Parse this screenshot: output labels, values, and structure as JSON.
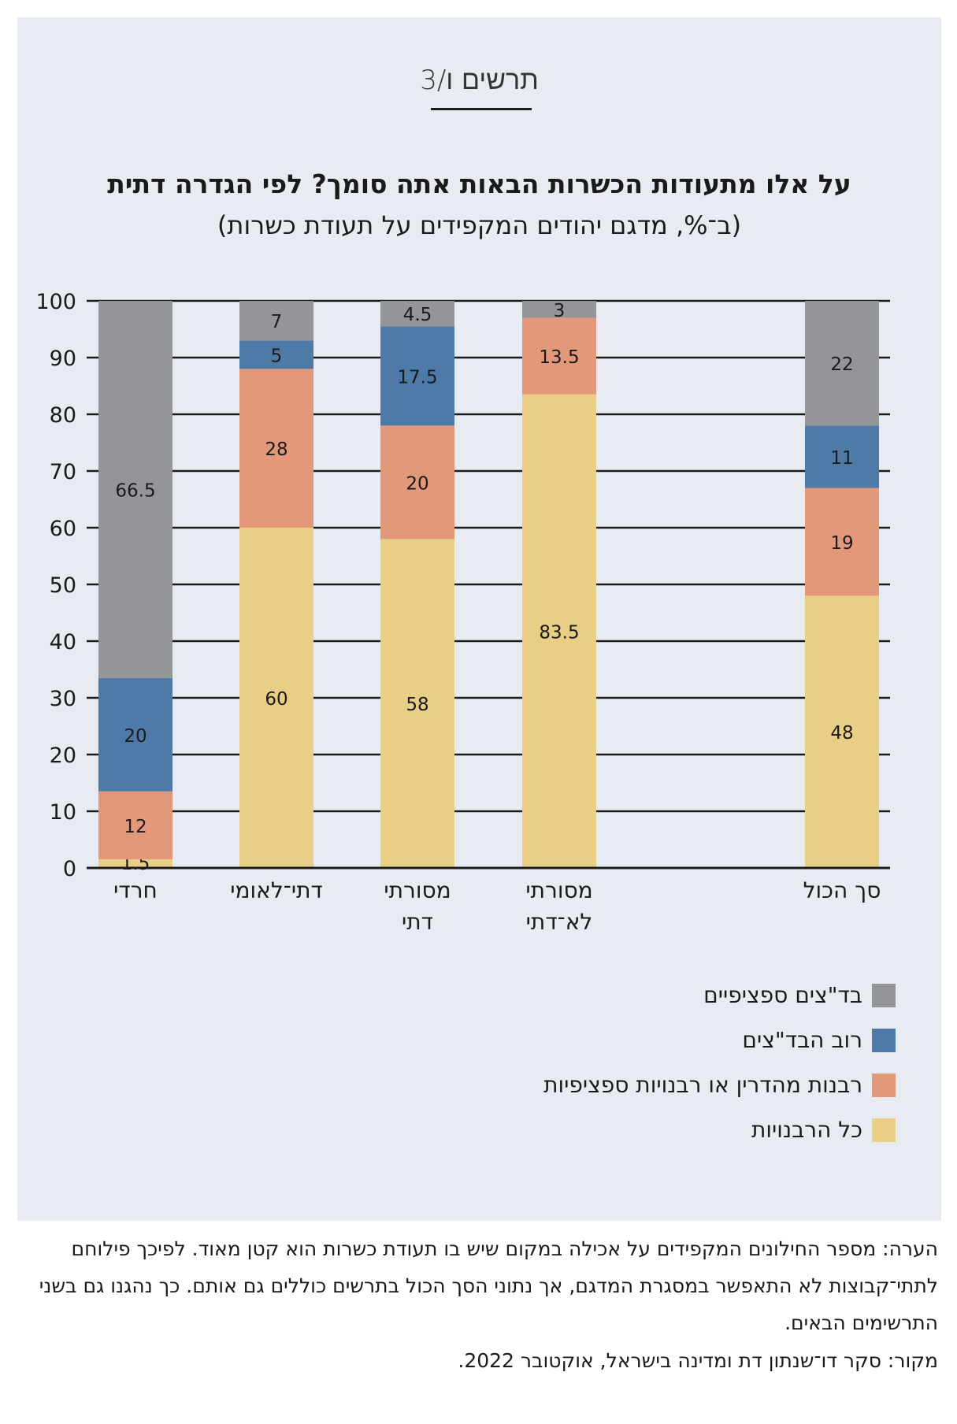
{
  "figure_label": "תרשים ו/3",
  "title": "על אלו מתעודות הכשרות הבאות אתה סומך? לפי הגדרה דתית",
  "subtitle": "(ב־%, מדגם יהודים המקפידים על תעודת כשרות)",
  "note": "הערה: מספר החילונים המקפידים על אכילה במקום שיש בו תעודת כשרות הוא קטן מאוד. לפיכך פילוחם לתתי־קבוצות לא התאפשר במסגרת המדגם, אך נתוני הסך הכול בתרשים כוללים גם אותם. כך נהגנו גם בשני התרשימים הבאים.",
  "source": "מקור: סקר דו־שנתון דת ומדינה בישראל, אוקטובר 2022.",
  "colors": {
    "all_rabbinates": "#e8cf85",
    "mehadrin": "#e3987a",
    "most_badatz": "#4e7aa8",
    "specific_badatz": "#939599"
  },
  "chart_data": {
    "type": "bar",
    "stacked": true,
    "orientation": "vertical",
    "ylim": [
      0,
      100
    ],
    "yticks": [
      0,
      10,
      20,
      30,
      40,
      50,
      60,
      70,
      80,
      90,
      100
    ],
    "grid": true,
    "legend_position": "bottom-right",
    "categories": [
      [
        "חרדי"
      ],
      [
        "דתי־לאומי"
      ],
      [
        "מסורתי",
        "דתי"
      ],
      [
        "מסורתי",
        "לא־דתי"
      ],
      [
        "סך הכול"
      ]
    ],
    "series": [
      {
        "name": "כל הרבנויות",
        "key": "all_rabbinates",
        "values": [
          1.5,
          60,
          58,
          83.5,
          48
        ]
      },
      {
        "name": "רבנות מהדרין או רבנויות ספציפיות",
        "key": "mehadrin",
        "values": [
          12,
          28,
          20,
          13.5,
          19
        ]
      },
      {
        "name": "רוב הבד\"צים",
        "key": "most_badatz",
        "values": [
          20,
          5,
          17.5,
          null,
          11
        ]
      },
      {
        "name": "בד\"צים ספציפיים",
        "key": "specific_badatz",
        "values": [
          66.5,
          7,
          4.5,
          3,
          22
        ]
      }
    ]
  }
}
